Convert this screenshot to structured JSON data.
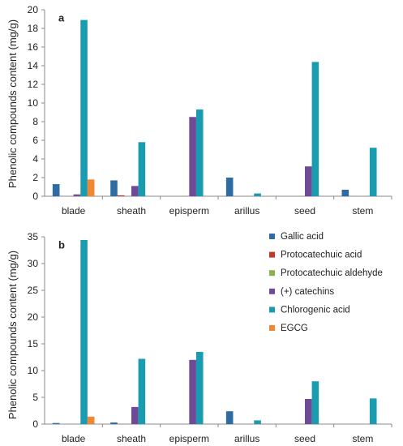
{
  "ylabel": "Phenolic compounds content (mg/g)",
  "categories": [
    "blade",
    "sheath",
    "episperm",
    "arillus",
    "seed",
    "stem"
  ],
  "legend": [
    {
      "name": "Gallic acid",
      "color": "#2e6ca4"
    },
    {
      "name": "Protocatechuic acid",
      "color": "#c0392b"
    },
    {
      "name": "Protocatechuic aldehyde",
      "color": "#8bb14a"
    },
    {
      "name": "(+) catechins",
      "color": "#6f4a96"
    },
    {
      "name": "Chlorogenic acid",
      "color": "#1a9cb0"
    },
    {
      "name": "EGCG",
      "color": "#ef8733"
    }
  ],
  "chart_data": [
    {
      "type": "bar",
      "panel": "a",
      "ylim": [
        0,
        20
      ],
      "yticks": [
        0,
        2,
        4,
        6,
        8,
        10,
        12,
        14,
        16,
        18,
        20
      ],
      "categories": [
        "blade",
        "sheath",
        "episperm",
        "arillus",
        "seed",
        "stem"
      ],
      "series": [
        {
          "name": "Gallic acid",
          "values": [
            1.3,
            1.7,
            0,
            2.0,
            0,
            0.7
          ]
        },
        {
          "name": "Protocatechuic acid",
          "values": [
            0,
            0.1,
            0,
            0,
            0,
            0
          ]
        },
        {
          "name": "Protocatechuic aldehyde",
          "values": [
            0,
            0,
            0,
            0,
            0,
            0
          ]
        },
        {
          "name": "(+) catechins",
          "values": [
            0.2,
            1.1,
            8.5,
            0,
            3.2,
            0
          ]
        },
        {
          "name": "Chlorogenic acid",
          "values": [
            18.9,
            5.8,
            9.3,
            0.3,
            14.4,
            5.2
          ]
        },
        {
          "name": "EGCG",
          "values": [
            1.8,
            0,
            0,
            0,
            0,
            0
          ]
        }
      ]
    },
    {
      "type": "bar",
      "panel": "b",
      "ylim": [
        0,
        35
      ],
      "yticks": [
        0,
        5,
        10,
        15,
        20,
        25,
        30,
        35
      ],
      "categories": [
        "blade",
        "sheath",
        "episperm",
        "arillus",
        "seed",
        "stem"
      ],
      "series": [
        {
          "name": "Gallic acid",
          "values": [
            0.2,
            0.3,
            0,
            2.4,
            0,
            0
          ]
        },
        {
          "name": "Protocatechuic acid",
          "values": [
            0,
            0,
            0,
            0,
            0,
            0
          ]
        },
        {
          "name": "Protocatechuic aldehyde",
          "values": [
            0,
            0,
            0,
            0,
            0,
            0
          ]
        },
        {
          "name": "(+) catechins",
          "values": [
            0,
            3.2,
            12.0,
            0,
            4.7,
            0
          ]
        },
        {
          "name": "Chlorogenic acid",
          "values": [
            34.4,
            12.2,
            13.5,
            0.7,
            8.0,
            4.8
          ]
        },
        {
          "name": "EGCG",
          "values": [
            1.4,
            0,
            0,
            0,
            0,
            0
          ]
        }
      ]
    }
  ]
}
